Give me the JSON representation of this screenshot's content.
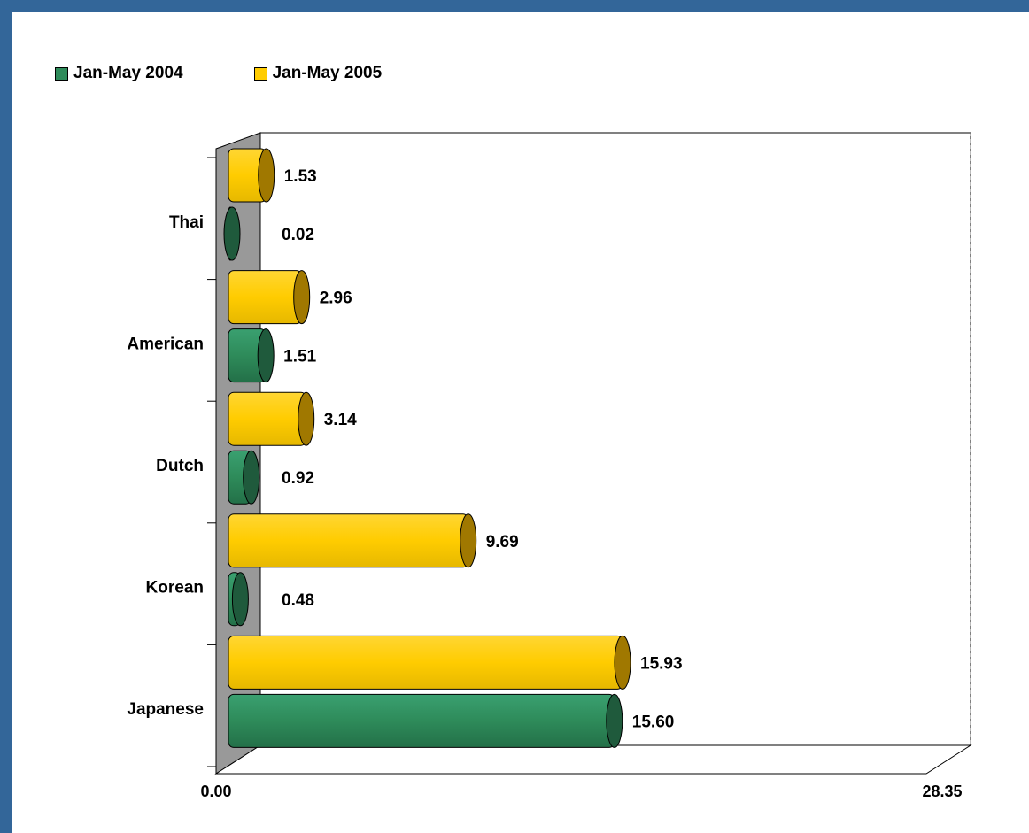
{
  "legend": [
    {
      "label": "Jan-May 2004",
      "color": "#2e8b5a"
    },
    {
      "label": "Jan-May 2005",
      "color": "#ffcc00"
    }
  ],
  "chart_data": {
    "type": "bar",
    "orientation": "horizontal",
    "three_d": true,
    "categories": [
      "Thai",
      "American",
      "Dutch",
      "Korean",
      "Japanese"
    ],
    "series": [
      {
        "name": "Jan-May 2004",
        "color": "#2e8b5a",
        "values": [
          0.02,
          1.51,
          0.92,
          0.48,
          15.6
        ],
        "labels": [
          "0.02",
          "1.51",
          "0.92",
          "0.48",
          "15.60"
        ]
      },
      {
        "name": "Jan-May 2005",
        "color": "#ffcc00",
        "values": [
          1.53,
          2.96,
          3.14,
          9.69,
          15.93
        ],
        "labels": [
          "1.53",
          "2.96",
          "3.14",
          "9.69",
          "15.93"
        ]
      }
    ],
    "xlim": [
      0,
      28.35
    ],
    "x_tick_labels": [
      "0.00",
      "28.35"
    ],
    "legend_position": "top-left",
    "grid": false
  }
}
